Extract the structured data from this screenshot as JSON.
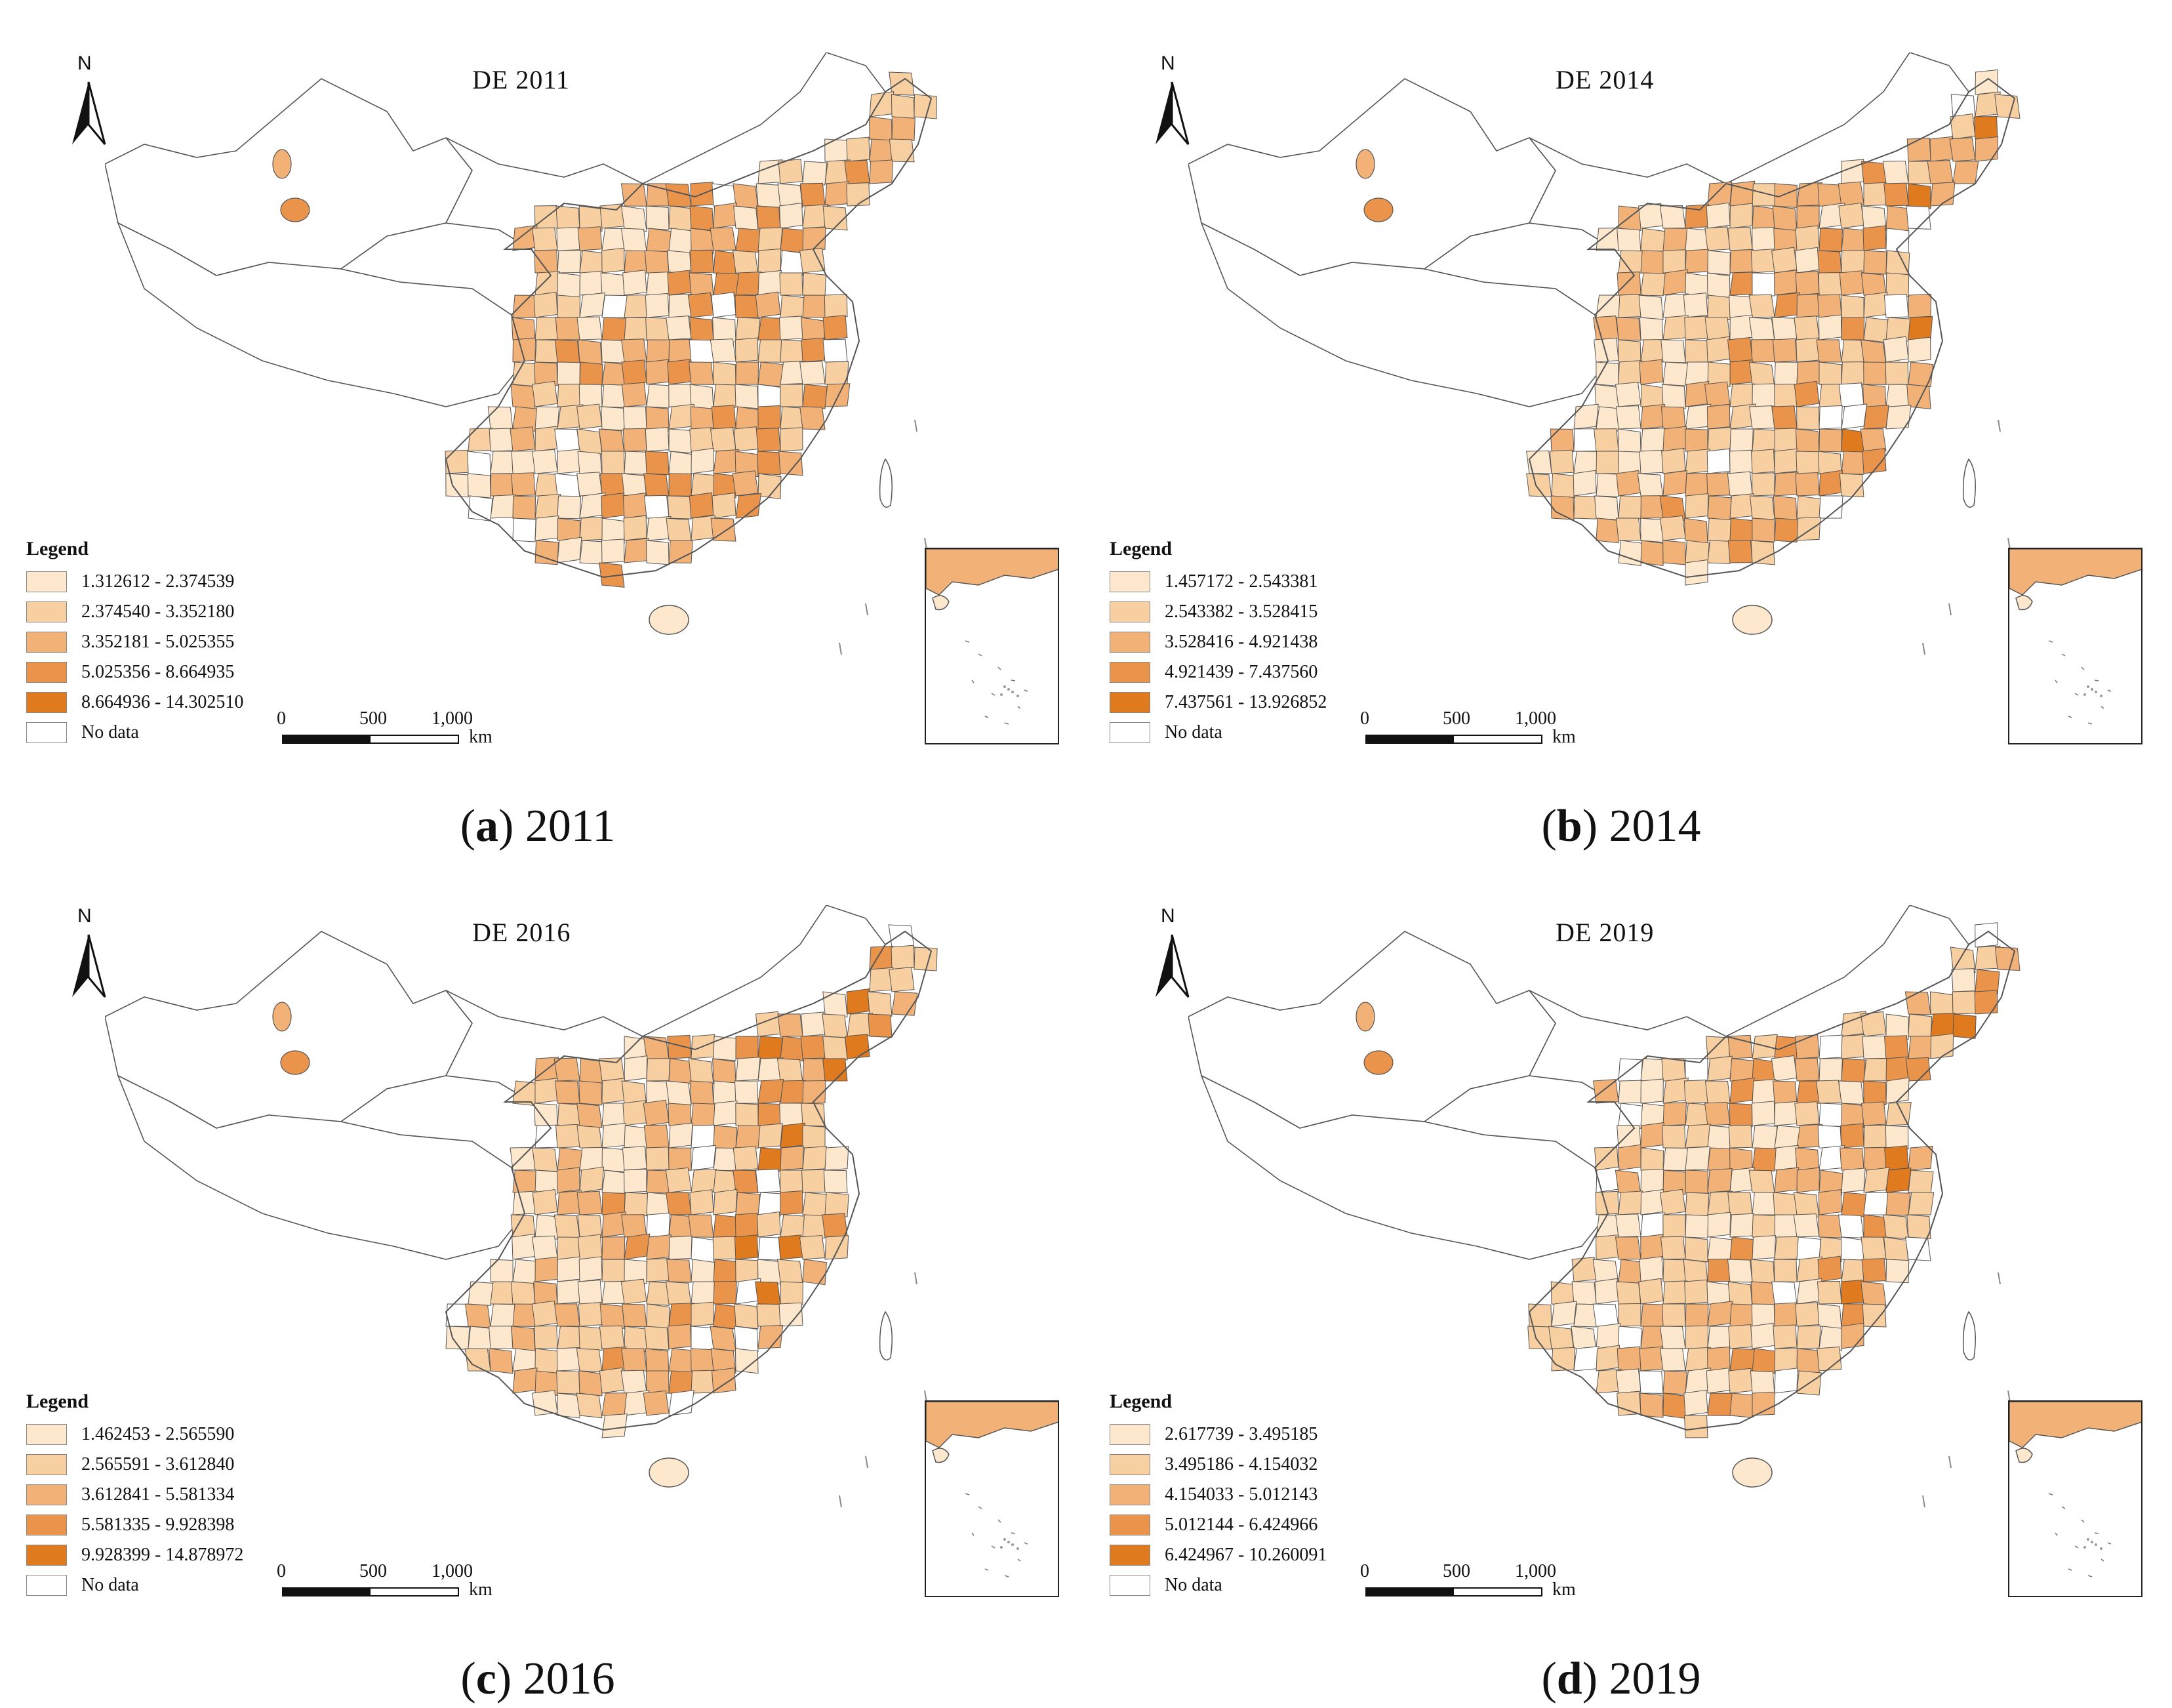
{
  "colors": {
    "class1": "#fde8cd",
    "class2": "#f8cfa0",
    "class3": "#f2b277",
    "class4": "#ea944b",
    "class5": "#e07a1f",
    "no_data": "#ffffff",
    "boundary": "#555555"
  },
  "common": {
    "north_label": "N",
    "legend_title": "Legend",
    "no_data_label": "No data",
    "scale_0": "0",
    "scale_500": "500",
    "scale_1000": "1,000",
    "scale_unit": "km"
  },
  "panels": [
    {
      "id": "a",
      "title": "DE 2011",
      "caption_letter": "a",
      "caption_year": "2011",
      "legend": [
        "1.312612 - 2.374539",
        "2.374540 - 3.352180",
        "3.352181 - 5.025355",
        "5.025356 - 8.664935",
        "8.664936 - 14.302510"
      ]
    },
    {
      "id": "b",
      "title": "DE 2014",
      "caption_letter": "b",
      "caption_year": "2014",
      "legend": [
        "1.457172 - 2.543381",
        "2.543382 - 3.528415",
        "3.528416 - 4.921438",
        "4.921439 - 7.437560",
        "7.437561 - 13.926852"
      ]
    },
    {
      "id": "c",
      "title": "DE 2016",
      "caption_letter": "c",
      "caption_year": "2016",
      "legend": [
        "1.462453 - 2.565590",
        "2.565591 - 3.612840",
        "3.612841 - 5.581334",
        "5.581335 - 9.928398",
        "9.928399 - 14.878972"
      ]
    },
    {
      "id": "d",
      "title": "DE 2019",
      "caption_letter": "d",
      "caption_year": "2019",
      "legend": [
        "2.617739 - 3.495185",
        "3.495186 - 4.154032",
        "4.154033 - 5.012143",
        "5.012144 - 6.424966",
        "6.424967 - 10.260091"
      ]
    }
  ]
}
